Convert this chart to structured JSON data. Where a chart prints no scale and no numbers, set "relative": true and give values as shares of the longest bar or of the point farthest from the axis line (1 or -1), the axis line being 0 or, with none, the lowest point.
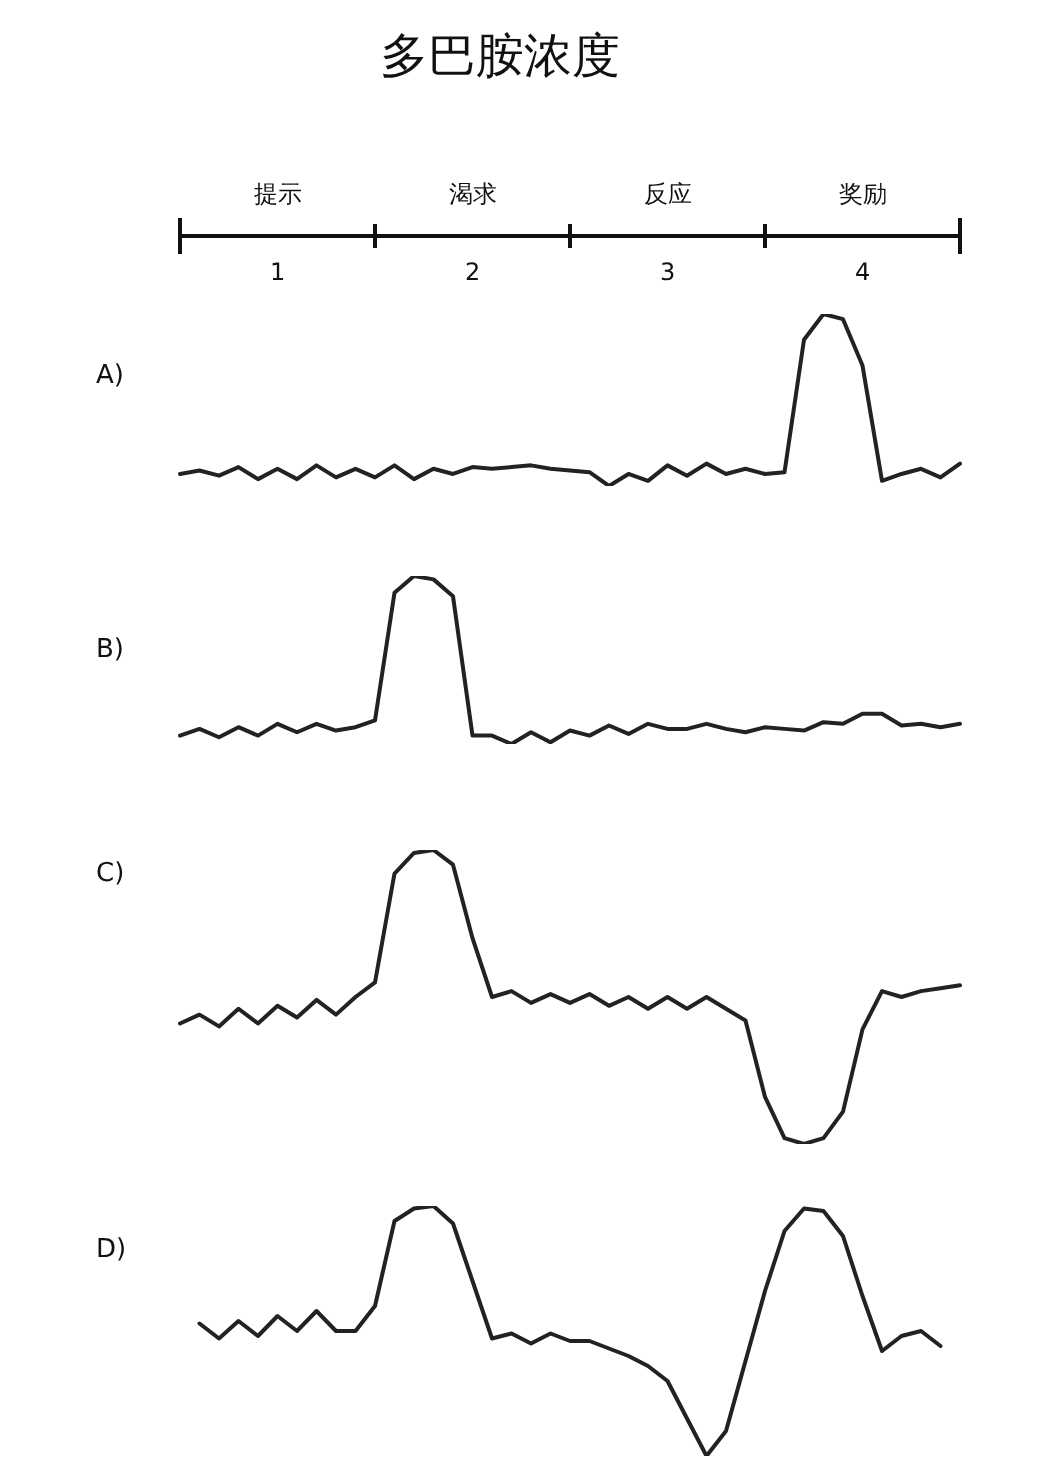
{
  "chart_data": [
    {
      "type": "line",
      "title": "多巴胺浓度",
      "subtitle": "A)",
      "relative": true,
      "color": "#222222",
      "tick_labels": false,
      "annotations": [
        "提示",
        "渴求",
        "反应",
        "奖励",
        "1",
        "2",
        "3",
        "4"
      ],
      "categories": [
        null,
        null,
        null,
        null,
        null,
        null,
        null,
        null,
        null,
        null,
        null,
        null,
        null,
        null,
        null,
        null,
        null,
        null,
        null,
        null,
        null,
        null,
        null,
        null,
        null,
        null,
        null,
        null,
        null,
        null,
        null,
        null,
        null,
        null,
        null,
        null,
        null,
        null,
        null,
        null,
        null
      ],
      "values": [
        0.07,
        0.09,
        0.06,
        0.11,
        0.04,
        0.1,
        0.04,
        0.12,
        0.05,
        0.1,
        0.05,
        0.12,
        0.04,
        0.1,
        0.07,
        0.11,
        0.1,
        0.11,
        0.12,
        0.1,
        0.09,
        0.08,
        0,
        0.07,
        0.03,
        0.12,
        0.06,
        0.13,
        0.07,
        0.1,
        0.07,
        0.08,
        0.85,
        1,
        0.97,
        0.7,
        0.03,
        0.07,
        0.1,
        0.05,
        0.13
      ]
    },
    {
      "type": "line",
      "subtitle": "B)",
      "relative": true,
      "color": "#222222",
      "tick_labels": false,
      "categories": [
        null,
        null,
        null,
        null,
        null,
        null,
        null,
        null,
        null,
        null,
        null,
        null,
        null,
        null,
        null,
        null,
        null,
        null,
        null,
        null,
        null,
        null,
        null,
        null,
        null,
        null,
        null,
        null,
        null,
        null,
        null,
        null,
        null,
        null,
        null,
        null,
        null,
        null,
        null,
        null,
        null
      ],
      "values": [
        0.05,
        0.09,
        0.04,
        0.1,
        0.05,
        0.12,
        0.07,
        0.12,
        0.08,
        0.1,
        0.14,
        0.9,
        1,
        0.98,
        0.88,
        0.05,
        0.05,
        0,
        0.07,
        0.01,
        0.08,
        0.05,
        0.11,
        0.06,
        0.12,
        0.09,
        0.09,
        0.12,
        0.09,
        0.07,
        0.1,
        0.09,
        0.08,
        0.13,
        0.12,
        0.18,
        0.18,
        0.11,
        0.12,
        0.1,
        0.12
      ]
    },
    {
      "type": "line",
      "subtitle": "C)",
      "relative": true,
      "color": "#222222",
      "tick_labels": false,
      "categories": [
        null,
        null,
        null,
        null,
        null,
        null,
        null,
        null,
        null,
        null,
        null,
        null,
        null,
        null,
        null,
        null,
        null,
        null,
        null,
        null,
        null,
        null,
        null,
        null,
        null,
        null,
        null,
        null,
        null,
        null,
        null,
        null,
        null,
        null,
        null,
        null,
        null,
        null,
        null,
        null,
        null
      ],
      "values": [
        0.41,
        0.44,
        0.4,
        0.46,
        0.41,
        0.47,
        0.43,
        0.49,
        0.44,
        0.5,
        0.55,
        0.92,
        0.99,
        1,
        0.95,
        0.7,
        0.5,
        0.52,
        0.48,
        0.51,
        0.48,
        0.51,
        0.47,
        0.5,
        0.46,
        0.5,
        0.46,
        0.5,
        0.46,
        0.42,
        0.16,
        0.02,
        0,
        0.02,
        0.11,
        0.39,
        0.52,
        0.5,
        0.52,
        0.53,
        0.54
      ]
    },
    {
      "type": "line",
      "subtitle": "D)",
      "relative": true,
      "color": "#222222",
      "tick_labels": false,
      "categories": [
        null,
        null,
        null,
        null,
        null,
        null,
        null,
        null,
        null,
        null,
        null,
        null,
        null,
        null,
        null,
        null,
        null,
        null,
        null,
        null,
        null,
        null,
        null,
        null,
        null,
        null,
        null,
        null,
        null,
        null,
        null,
        null,
        null,
        null,
        null,
        null,
        null,
        null,
        null,
        null,
        null
      ],
      "values": [
        null,
        0.53,
        0.47,
        0.54,
        0.48,
        0.56,
        0.5,
        0.58,
        0.5,
        0.5,
        0.6,
        0.94,
        0.99,
        1,
        0.93,
        0.7,
        0.47,
        0.49,
        0.45,
        0.49,
        0.46,
        0.46,
        0.43,
        0.4,
        0.36,
        0.3,
        0.15,
        0,
        0.1,
        0.38,
        0.66,
        0.9,
        0.99,
        0.98,
        0.88,
        0.64,
        0.42,
        0.48,
        0.5,
        0.44,
        null
      ]
    }
  ]
}
